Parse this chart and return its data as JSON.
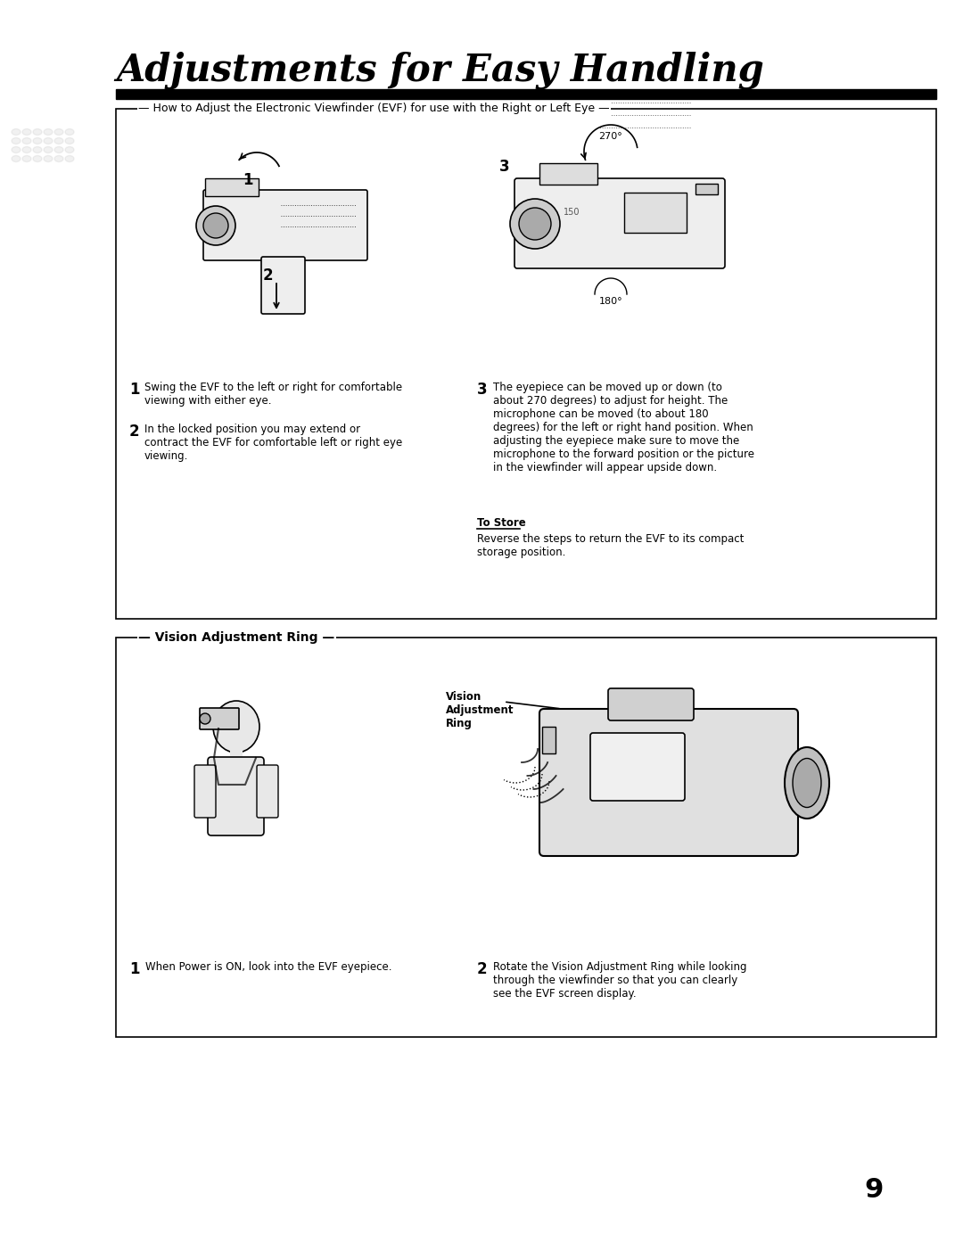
{
  "title": "Adjustments for Easy Handling",
  "bg_color": "#ffffff",
  "page_number": "9",
  "section1_title": "How to Adjust the Electronic Viewfinder (EVF) for use with the Right or Left Eye",
  "section2_title": "Vision Adjustment Ring",
  "step1_num": "1",
  "step1_text": "Swing the EVF to the left or right for comfortable\nviewing with either eye.",
  "step2_num": "2",
  "step2_text": "In the locked position you may extend or\ncontract the EVF for comfortable left or right eye\nviewing.",
  "step3_num": "3",
  "step3_text": "The eyepiece can be moved up or down (to\nabout 270 degrees) to adjust for height. The\nmicrophone can be moved (to about 180\ndegrees) for the left or right hand position. When\nadjusting the eyepiece make sure to move the\nmicrophone to the forward position or the picture\nin the viewfinder will appear upside down.",
  "to_store_title": "To Store",
  "to_store_text": "Reverse the steps to return the EVF to its compact\nstorage position.",
  "var1_step1_num": "1",
  "var1_step1": "When Power is ON, look into the EVF eyepiece.",
  "var1_step2_num": "2",
  "var1_step2": "Rotate the Vision Adjustment Ring while looking\nthrough the viewfinder so that you can clearly\nsee the EVF screen display.",
  "vision_label_line1": "Vision",
  "vision_label_line2": "Adjustment",
  "vision_label_line3": "Ring",
  "label_270": "270°",
  "label_180": "180°"
}
